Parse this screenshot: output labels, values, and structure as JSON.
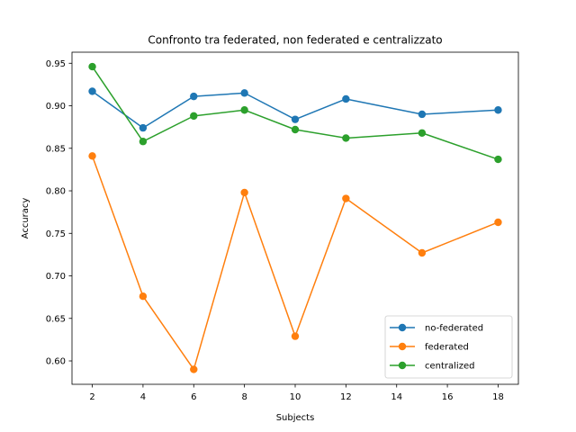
{
  "chart_data": {
    "type": "line",
    "title": "Confronto tra federated, non federated e centralizzato",
    "xlabel": "Subjects",
    "ylabel": "Accuracy",
    "x": [
      2,
      4,
      6,
      8,
      10,
      12,
      15,
      18
    ],
    "xticks": [
      2,
      4,
      6,
      8,
      10,
      12,
      14,
      16,
      18
    ],
    "yticks": [
      "0.60",
      "0.65",
      "0.70",
      "0.75",
      "0.80",
      "0.85",
      "0.90",
      "0.95"
    ],
    "xlim": [
      1.2,
      18.8
    ],
    "ylim": [
      0.5725,
      0.963
    ],
    "grid": false,
    "legend_position": "lower-right",
    "series": [
      {
        "name": "no-federated",
        "color": "#1f77b4",
        "values": [
          0.917,
          0.874,
          0.911,
          0.915,
          0.884,
          0.908,
          0.89,
          0.895
        ]
      },
      {
        "name": "federated",
        "color": "#ff7f0e",
        "values": [
          0.841,
          0.676,
          0.59,
          0.798,
          0.629,
          0.791,
          0.727,
          0.763
        ]
      },
      {
        "name": "centralized",
        "color": "#2ca02c",
        "values": [
          0.946,
          0.858,
          0.888,
          0.895,
          0.872,
          0.862,
          0.868,
          0.837
        ]
      }
    ]
  }
}
